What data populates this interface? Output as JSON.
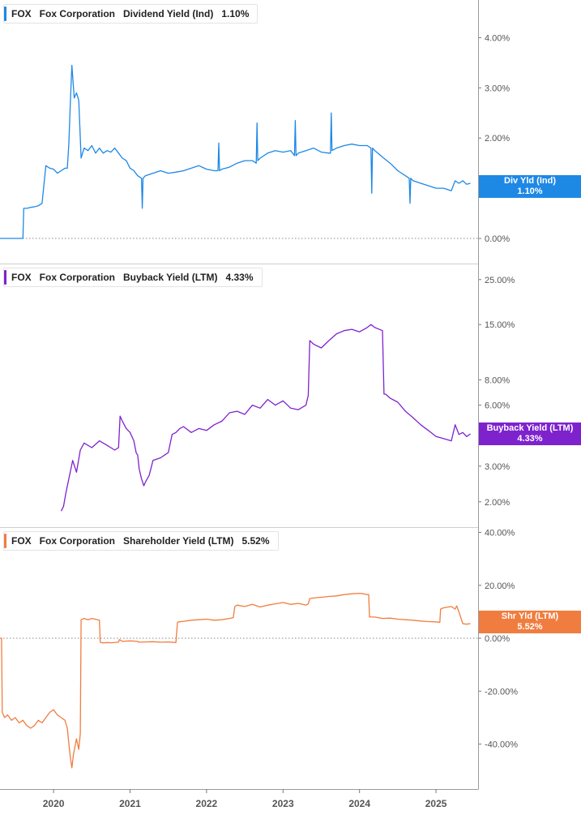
{
  "chart_data": [
    {
      "type": "line",
      "legend": {
        "ticker": "FOX",
        "company": "Fox Corporation",
        "metric": "Dividend Yield (Ind)",
        "value": "1.10%"
      },
      "tag": {
        "label": "Div Yld (Ind)",
        "value": "1.10%"
      },
      "color": "#1e88e5",
      "y_scale": "linear",
      "ylim": [
        -0.5,
        4.75
      ],
      "ticks": [
        {
          "v": 4,
          "l": "4.00%"
        },
        {
          "v": 3,
          "l": "3.00%"
        },
        {
          "v": 2,
          "l": "2.00%"
        },
        {
          "v": 0,
          "l": "0.00%"
        }
      ],
      "zero_line": 0,
      "series": [
        {
          "x": [
            2019.3,
            2019.32,
            2019.34,
            2019.36,
            2019.38,
            2019.42,
            2019.45,
            2019.6,
            2019.61,
            2019.65,
            2019.7,
            2019.75,
            2019.8,
            2019.85,
            2019.9,
            2019.95,
            2020.0,
            2020.05,
            2020.1,
            2020.15,
            2020.18,
            2020.2,
            2020.22,
            2020.24,
            2020.27,
            2020.3,
            2020.33,
            2020.36,
            2020.4,
            2020.45,
            2020.5,
            2020.55,
            2020.6,
            2020.65,
            2020.7,
            2020.75,
            2020.8,
            2020.85,
            2020.9,
            2020.95,
            2021.0,
            2021.05,
            2021.1,
            2021.15,
            2021.16,
            2021.17,
            2021.2,
            2021.3,
            2021.4,
            2021.5,
            2021.6,
            2021.7,
            2021.8,
            2021.9,
            2022.0,
            2022.1,
            2022.15,
            2022.16,
            2022.17,
            2022.2,
            2022.3,
            2022.4,
            2022.5,
            2022.6,
            2022.65,
            2022.66,
            2022.67,
            2022.7,
            2022.8,
            2022.9,
            2023.0,
            2023.1,
            2023.15,
            2023.16,
            2023.17,
            2023.2,
            2023.3,
            2023.4,
            2023.5,
            2023.6,
            2023.62,
            2023.63,
            2023.64,
            2023.7,
            2023.8,
            2023.9,
            2024.0,
            2024.1,
            2024.15,
            2024.16,
            2024.17,
            2024.2,
            2024.3,
            2024.4,
            2024.5,
            2024.6,
            2024.65,
            2024.66,
            2024.67,
            2024.7,
            2024.8,
            2024.9,
            2025.0,
            2025.1,
            2025.2,
            2025.25,
            2025.3,
            2025.35,
            2025.4,
            2025.45
          ],
          "y": [
            0.0,
            0.0,
            0.0,
            0.0,
            0.0,
            0.0,
            0.0,
            0.0,
            0.6,
            0.6,
            0.62,
            0.63,
            0.65,
            0.7,
            1.45,
            1.4,
            1.38,
            1.3,
            1.35,
            1.4,
            1.4,
            1.9,
            2.7,
            3.45,
            2.8,
            2.9,
            2.75,
            1.6,
            1.8,
            1.75,
            1.85,
            1.7,
            1.8,
            1.7,
            1.75,
            1.72,
            1.8,
            1.7,
            1.6,
            1.55,
            1.4,
            1.35,
            1.25,
            1.2,
            0.6,
            1.2,
            1.25,
            1.3,
            1.35,
            1.3,
            1.32,
            1.35,
            1.4,
            1.45,
            1.38,
            1.35,
            1.35,
            1.9,
            1.35,
            1.38,
            1.42,
            1.5,
            1.55,
            1.55,
            1.5,
            2.3,
            1.55,
            1.6,
            1.7,
            1.75,
            1.72,
            1.75,
            1.65,
            2.35,
            1.65,
            1.7,
            1.75,
            1.8,
            1.72,
            1.7,
            1.7,
            2.5,
            1.75,
            1.8,
            1.85,
            1.88,
            1.85,
            1.85,
            1.8,
            0.9,
            1.8,
            1.75,
            1.62,
            1.5,
            1.35,
            1.25,
            1.2,
            0.7,
            1.2,
            1.15,
            1.1,
            1.05,
            1.0,
            1.0,
            0.95,
            1.15,
            1.1,
            1.15,
            1.08,
            1.1
          ]
        }
      ]
    },
    {
      "type": "line",
      "legend": {
        "ticker": "FOX",
        "company": "Fox Corporation",
        "metric": "Buyback Yield (LTM)",
        "value": "4.33%"
      },
      "tag": {
        "label": "Buyback Yield (LTM)",
        "value": "4.33%"
      },
      "color": "#7e22ce",
      "y_scale": "log",
      "ylim": [
        1.5,
        30
      ],
      "ticks": [
        {
          "v": 25,
          "l": "25.00%"
        },
        {
          "v": 15,
          "l": "15.00%"
        },
        {
          "v": 8,
          "l": "8.00%"
        },
        {
          "v": 6,
          "l": "6.00%"
        },
        {
          "v": 3,
          "l": "3.00%"
        },
        {
          "v": 2,
          "l": "2.00%"
        }
      ],
      "series": [
        {
          "x": [
            2020.1,
            2020.13,
            2020.16,
            2020.2,
            2020.25,
            2020.3,
            2020.35,
            2020.4,
            2020.5,
            2020.6,
            2020.7,
            2020.8,
            2020.85,
            2020.87,
            2020.9,
            2020.95,
            2021.0,
            2021.05,
            2021.08,
            2021.1,
            2021.12,
            2021.15,
            2021.18,
            2021.2,
            2021.25,
            2021.3,
            2021.4,
            2021.5,
            2021.55,
            2021.6,
            2021.65,
            2021.7,
            2021.8,
            2021.9,
            2022.0,
            2022.1,
            2022.2,
            2022.3,
            2022.4,
            2022.5,
            2022.6,
            2022.7,
            2022.8,
            2022.9,
            2023.0,
            2023.1,
            2023.2,
            2023.3,
            2023.33,
            2023.35,
            2023.4,
            2023.5,
            2023.6,
            2023.7,
            2023.8,
            2023.9,
            2024.0,
            2024.1,
            2024.15,
            2024.2,
            2024.3,
            2024.32,
            2024.34,
            2024.4,
            2024.5,
            2024.6,
            2024.7,
            2024.8,
            2024.9,
            2025.0,
            2025.1,
            2025.2,
            2025.25,
            2025.3,
            2025.35,
            2025.4,
            2025.45
          ],
          "y": [
            1.8,
            1.9,
            2.2,
            2.6,
            3.2,
            2.8,
            3.6,
            3.9,
            3.7,
            4.0,
            3.8,
            3.6,
            3.7,
            5.3,
            5.0,
            4.6,
            4.4,
            4.0,
            3.5,
            3.4,
            2.9,
            2.6,
            2.4,
            2.5,
            2.7,
            3.2,
            3.3,
            3.5,
            4.3,
            4.4,
            4.6,
            4.7,
            4.4,
            4.6,
            4.5,
            4.8,
            5.0,
            5.5,
            5.6,
            5.4,
            6.0,
            5.8,
            6.4,
            6.0,
            6.3,
            5.8,
            5.7,
            6.0,
            6.7,
            12.5,
            12.0,
            11.5,
            12.5,
            13.5,
            14.0,
            14.2,
            13.8,
            14.5,
            15.0,
            14.5,
            14.0,
            6.8,
            6.8,
            6.5,
            6.2,
            5.6,
            5.2,
            4.8,
            4.5,
            4.2,
            4.1,
            4.0,
            4.8,
            4.3,
            4.4,
            4.2,
            4.33
          ]
        }
      ]
    },
    {
      "type": "line",
      "legend": {
        "ticker": "FOX",
        "company": "Fox Corporation",
        "metric": "Shareholder Yield (LTM)",
        "value": "5.52%"
      },
      "tag": {
        "label": "Shr Yld (LTM)",
        "value": "5.52%"
      },
      "color": "#f07d3f",
      "y_scale": "linear",
      "ylim": [
        -57,
        42
      ],
      "ticks": [
        {
          "v": 40,
          "l": "40.00%"
        },
        {
          "v": 20,
          "l": "20.00%"
        },
        {
          "v": 0,
          "l": "0.00%"
        },
        {
          "v": -20,
          "l": "-20.00%"
        },
        {
          "v": -40,
          "l": "-40.00%"
        }
      ],
      "zero_line": 0,
      "series": [
        {
          "x": [
            2019.3,
            2019.32,
            2019.33,
            2019.36,
            2019.4,
            2019.45,
            2019.5,
            2019.55,
            2019.6,
            2019.65,
            2019.7,
            2019.75,
            2019.8,
            2019.85,
            2019.9,
            2019.95,
            2020.0,
            2020.05,
            2020.1,
            2020.15,
            2020.18,
            2020.2,
            2020.22,
            2020.24,
            2020.26,
            2020.28,
            2020.3,
            2020.33,
            2020.35,
            2020.36,
            2020.4,
            2020.45,
            2020.5,
            2020.6,
            2020.61,
            2020.65,
            2020.7,
            2020.75,
            2020.85,
            2020.86,
            2020.9,
            2021.0,
            2021.1,
            2021.11,
            2021.2,
            2021.3,
            2021.4,
            2021.5,
            2021.6,
            2021.62,
            2021.64,
            2021.7,
            2021.8,
            2021.9,
            2022.0,
            2022.1,
            2022.2,
            2022.3,
            2022.35,
            2022.37,
            2022.4,
            2022.5,
            2022.6,
            2022.7,
            2022.8,
            2022.9,
            2023.0,
            2023.1,
            2023.2,
            2023.3,
            2023.33,
            2023.35,
            2023.4,
            2023.5,
            2023.6,
            2023.7,
            2023.8,
            2023.9,
            2024.0,
            2024.05,
            2024.1,
            2024.12,
            2024.13,
            2024.2,
            2024.3,
            2024.4,
            2024.5,
            2024.6,
            2024.7,
            2024.8,
            2024.9,
            2025.0,
            2025.05,
            2025.06,
            2025.1,
            2025.2,
            2025.25,
            2025.27,
            2025.3,
            2025.35,
            2025.4,
            2025.45
          ],
          "y": [
            0.0,
            0.0,
            -28.0,
            -30.0,
            -29.0,
            -31.0,
            -30.0,
            -32.0,
            -31.0,
            -33.0,
            -34.0,
            -33.0,
            -31.0,
            -32.0,
            -30.0,
            -28.0,
            -27.0,
            -29.0,
            -30.0,
            -31.0,
            -34.0,
            -40.0,
            -45.0,
            -49.0,
            -44.0,
            -41.0,
            -38.0,
            -42.0,
            -36.0,
            7.0,
            7.5,
            7.0,
            7.5,
            6.8,
            -1.5,
            -1.8,
            -1.6,
            -1.7,
            -1.5,
            -0.5,
            -1.2,
            -1.0,
            -1.2,
            -1.5,
            -1.4,
            -1.3,
            -1.5,
            -1.4,
            -1.6,
            6.0,
            6.2,
            6.4,
            6.8,
            7.0,
            7.2,
            6.8,
            7.0,
            7.5,
            7.8,
            12.0,
            12.5,
            12.0,
            12.8,
            11.8,
            12.5,
            13.0,
            13.5,
            12.8,
            13.2,
            12.5,
            13.0,
            15.0,
            15.2,
            15.5,
            15.8,
            16.0,
            16.5,
            16.8,
            17.0,
            16.8,
            16.5,
            16.5,
            8.0,
            8.0,
            7.5,
            7.6,
            7.2,
            7.0,
            6.8,
            6.5,
            6.3,
            6.2,
            6.0,
            11.0,
            11.5,
            12.0,
            11.0,
            12.2,
            10.0,
            5.5,
            5.3,
            5.52
          ]
        }
      ]
    }
  ],
  "x_axis": {
    "ticks": [
      {
        "v": 2020,
        "l": "2020"
      },
      {
        "v": 2021,
        "l": "2021"
      },
      {
        "v": 2022,
        "l": "2022"
      },
      {
        "v": 2023,
        "l": "2023"
      },
      {
        "v": 2024,
        "l": "2024"
      },
      {
        "v": 2025,
        "l": "2025"
      }
    ],
    "xlim": [
      2019.3,
      2025.55
    ]
  }
}
